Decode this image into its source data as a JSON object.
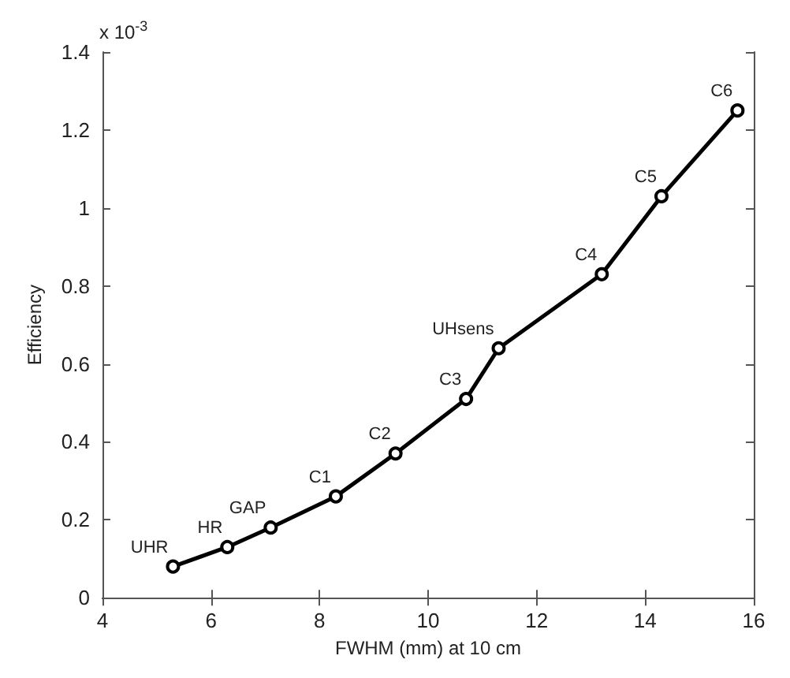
{
  "chart_data": {
    "type": "line",
    "xlabel": "FWHM (mm) at 10 cm",
    "ylabel": "Efficiency",
    "x": [
      5.3,
      6.3,
      7.1,
      8.3,
      9.4,
      10.7,
      11.3,
      13.2,
      14.3,
      15.7
    ],
    "series": [
      {
        "color": "#000000",
        "values": [
          0.08,
          0.13,
          0.18,
          0.26,
          0.37,
          0.51,
          0.64,
          0.83,
          1.03,
          1.25
        ]
      }
    ],
    "xlim": [
      4,
      16
    ],
    "xticks": [
      4,
      6,
      8,
      10,
      12,
      14,
      16
    ],
    "ylim": [
      0,
      1.4
    ],
    "yticks": [
      0,
      0.2,
      0.4,
      0.6,
      0.8,
      1,
      1.2,
      1.4
    ],
    "marker": "circle",
    "line_style": "solid",
    "grid": false,
    "annotations": [
      "x 10$^{-3}$",
      {
        "text": "UHR",
        "x": 5.3,
        "y": 0.08
      },
      {
        "text": "HR",
        "x": 6.3,
        "y": 0.13
      },
      {
        "text": "GAP",
        "x": 7.1,
        "y": 0.18
      },
      {
        "text": "C1",
        "x": 8.3,
        "y": 0.26
      },
      {
        "text": "C2",
        "x": 9.4,
        "y": 0.37
      },
      {
        "text": "C3",
        "x": 10.7,
        "y": 0.51
      },
      {
        "text": "UHsens",
        "x": 11.3,
        "y": 0.64
      },
      {
        "text": "C4",
        "x": 13.2,
        "y": 0.83
      },
      {
        "text": "C5",
        "x": 14.3,
        "y": 1.03
      },
      {
        "text": "C6",
        "x": 15.7,
        "y": 1.25
      }
    ]
  }
}
